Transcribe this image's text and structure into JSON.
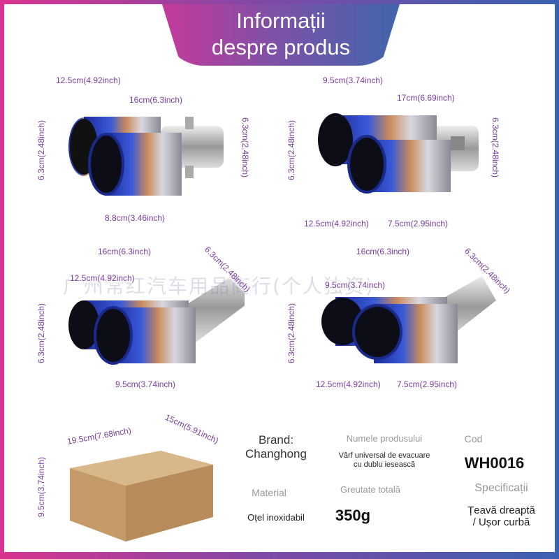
{
  "header": {
    "title_line1": "Informații",
    "title_line2": "despre produs"
  },
  "watermark": "广州常红汽车用品商行(个人独资)",
  "colors": {
    "dimension": "#7b3b9e",
    "frame_left": "#d9348f",
    "frame_right": "#3a62b0"
  },
  "diagrams": [
    {
      "labels": [
        "12.5cm(4.92inch)",
        "16cm(6.3inch)",
        "6.3cm(2.48inch)",
        "6.3cm(2.48inch)",
        "8.8cm(3.46inch)"
      ]
    },
    {
      "labels": [
        "9.5cm(3.74inch)",
        "17cm(6.69inch)",
        "6.3cm(2.48inch)",
        "6.3cm(2.48inch)",
        "12.5cm(4.92inch)",
        "7.5cm(2.95inch)"
      ]
    },
    {
      "labels": [
        "16cm(6.3inch)",
        "12.5cm(4.92inch)",
        "6.3cm(2.48inch)",
        "6.3cm(2.48inch)",
        "9.5cm(3.74inch)"
      ]
    },
    {
      "labels": [
        "16cm(6.3inch)",
        "9.5cm(3.74inch)",
        "6.3cm(2.48inch)",
        "6.3cm(2.48inch)",
        "12.5cm(4.92inch)",
        "7.5cm(2.95inch)"
      ]
    }
  ],
  "box": {
    "labels": [
      "19.5cm(7.68inch)",
      "15cm(5.91inch)",
      "9.5cm(3.74inch)"
    ]
  },
  "specs": {
    "brand_label": "Brand:",
    "brand_value": "Changhong",
    "name_label": "Numele produsului",
    "name_value": "Vârf universal de evacuare cu dublu iesească",
    "code_label": "Cod",
    "code_value": "WH0016",
    "material_label": "Material",
    "material_value": "Oțel inoxidabil",
    "weight_label": "Greutate totală",
    "weight_value": "350g",
    "spec_label": "Specificații",
    "spec_value_line1": "Țeavă dreaptă",
    "spec_value_line2": "/ Ușor curbă"
  }
}
